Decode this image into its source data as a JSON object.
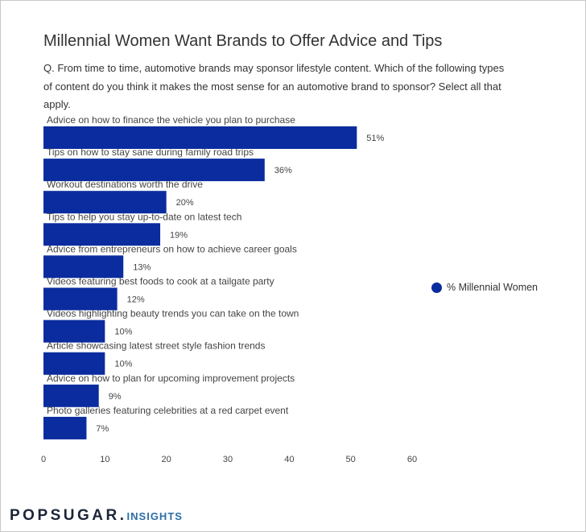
{
  "title": "Millennial Women Want Brands to Offer Advice and Tips",
  "question": "Q. From time to time, automotive brands may sponsor lifestyle content. Which of the following types of content do you think it makes the most sense for an automotive brand to sponsor? Select all that apply.",
  "brand": {
    "name": "POPSUGAR.",
    "sub": "INSIGHTS"
  },
  "legend": {
    "label": "% Millennial Women",
    "color": "#0a2c9e"
  },
  "chart_data": {
    "type": "bar",
    "orientation": "horizontal",
    "categories": [
      "Advice on how to finance the vehicle you plan to purchase",
      "Tips on how to stay sane during family road trips",
      "Workout destinations worth the drive",
      "Tips to help you stay up-to-date on latest tech",
      "Advice from entrepreneurs on how to achieve career goals",
      "Videos featuring best foods to cook at a tailgate party",
      "Videos highlighting beauty trends you can take on the town",
      "Article showcasing latest street style fashion trends",
      "Advice on how to plan for upcoming improvement projects",
      "Photo galleries featuring celebrities at a red carpet event"
    ],
    "series": [
      {
        "name": "% Millennial Women",
        "values": [
          51,
          36,
          20,
          19,
          13,
          12,
          10,
          10,
          9,
          7
        ]
      }
    ],
    "data_labels": [
      "51%",
      "36%",
      "20%",
      "19%",
      "13%",
      "12%",
      "10%",
      "10%",
      "9%",
      "7%"
    ],
    "xlim": [
      0,
      60
    ],
    "xticks": [
      "0",
      "10",
      "20",
      "30",
      "40",
      "50",
      "60"
    ],
    "grid": false,
    "legend_position": "right",
    "bar_color": "#0a2c9e"
  }
}
